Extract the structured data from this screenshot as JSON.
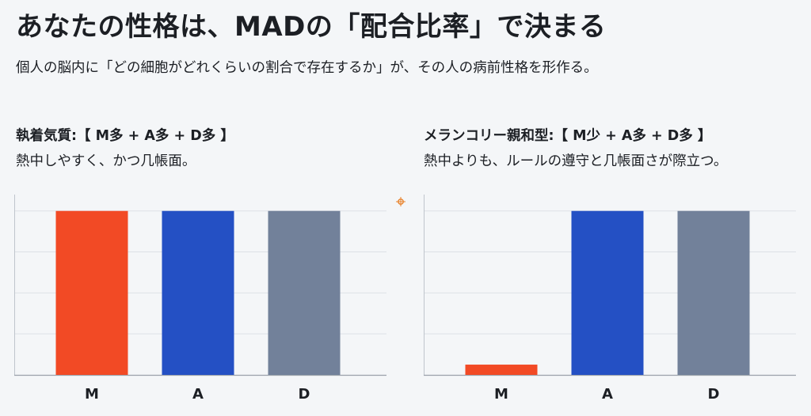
{
  "header": {
    "title": "あなたの性格は、MADの「配合比率」で決まる",
    "subtitle": "個人の脳内に「どの細胞がどれくらいの割合で存在するか」が、その人の病前性格を形作る。"
  },
  "panels": [
    {
      "heading": "執着気質:【 M多 + A多 + D多 】",
      "description": "熱中しやすく、かつ几帳面。"
    },
    {
      "heading": "メランコリー親和型:【 M少 + A多 + D多 】",
      "description": "熱中よりも、ルールの遵守と几帳面さが際立つ。"
    }
  ],
  "chart_data": [
    {
      "type": "bar",
      "categories": [
        "M",
        "A",
        "D"
      ],
      "values": [
        4,
        4,
        4
      ],
      "ylim": [
        0,
        4.4
      ],
      "grid": true,
      "colors": [
        "#f24a25",
        "#2450c4",
        "#72819a"
      ]
    },
    {
      "type": "bar",
      "categories": [
        "M",
        "A",
        "D"
      ],
      "values": [
        0.25,
        4,
        4
      ],
      "ylim": [
        0,
        4.4
      ],
      "grid": true,
      "colors": [
        "#f24a25",
        "#2450c4",
        "#72819a"
      ]
    }
  ]
}
